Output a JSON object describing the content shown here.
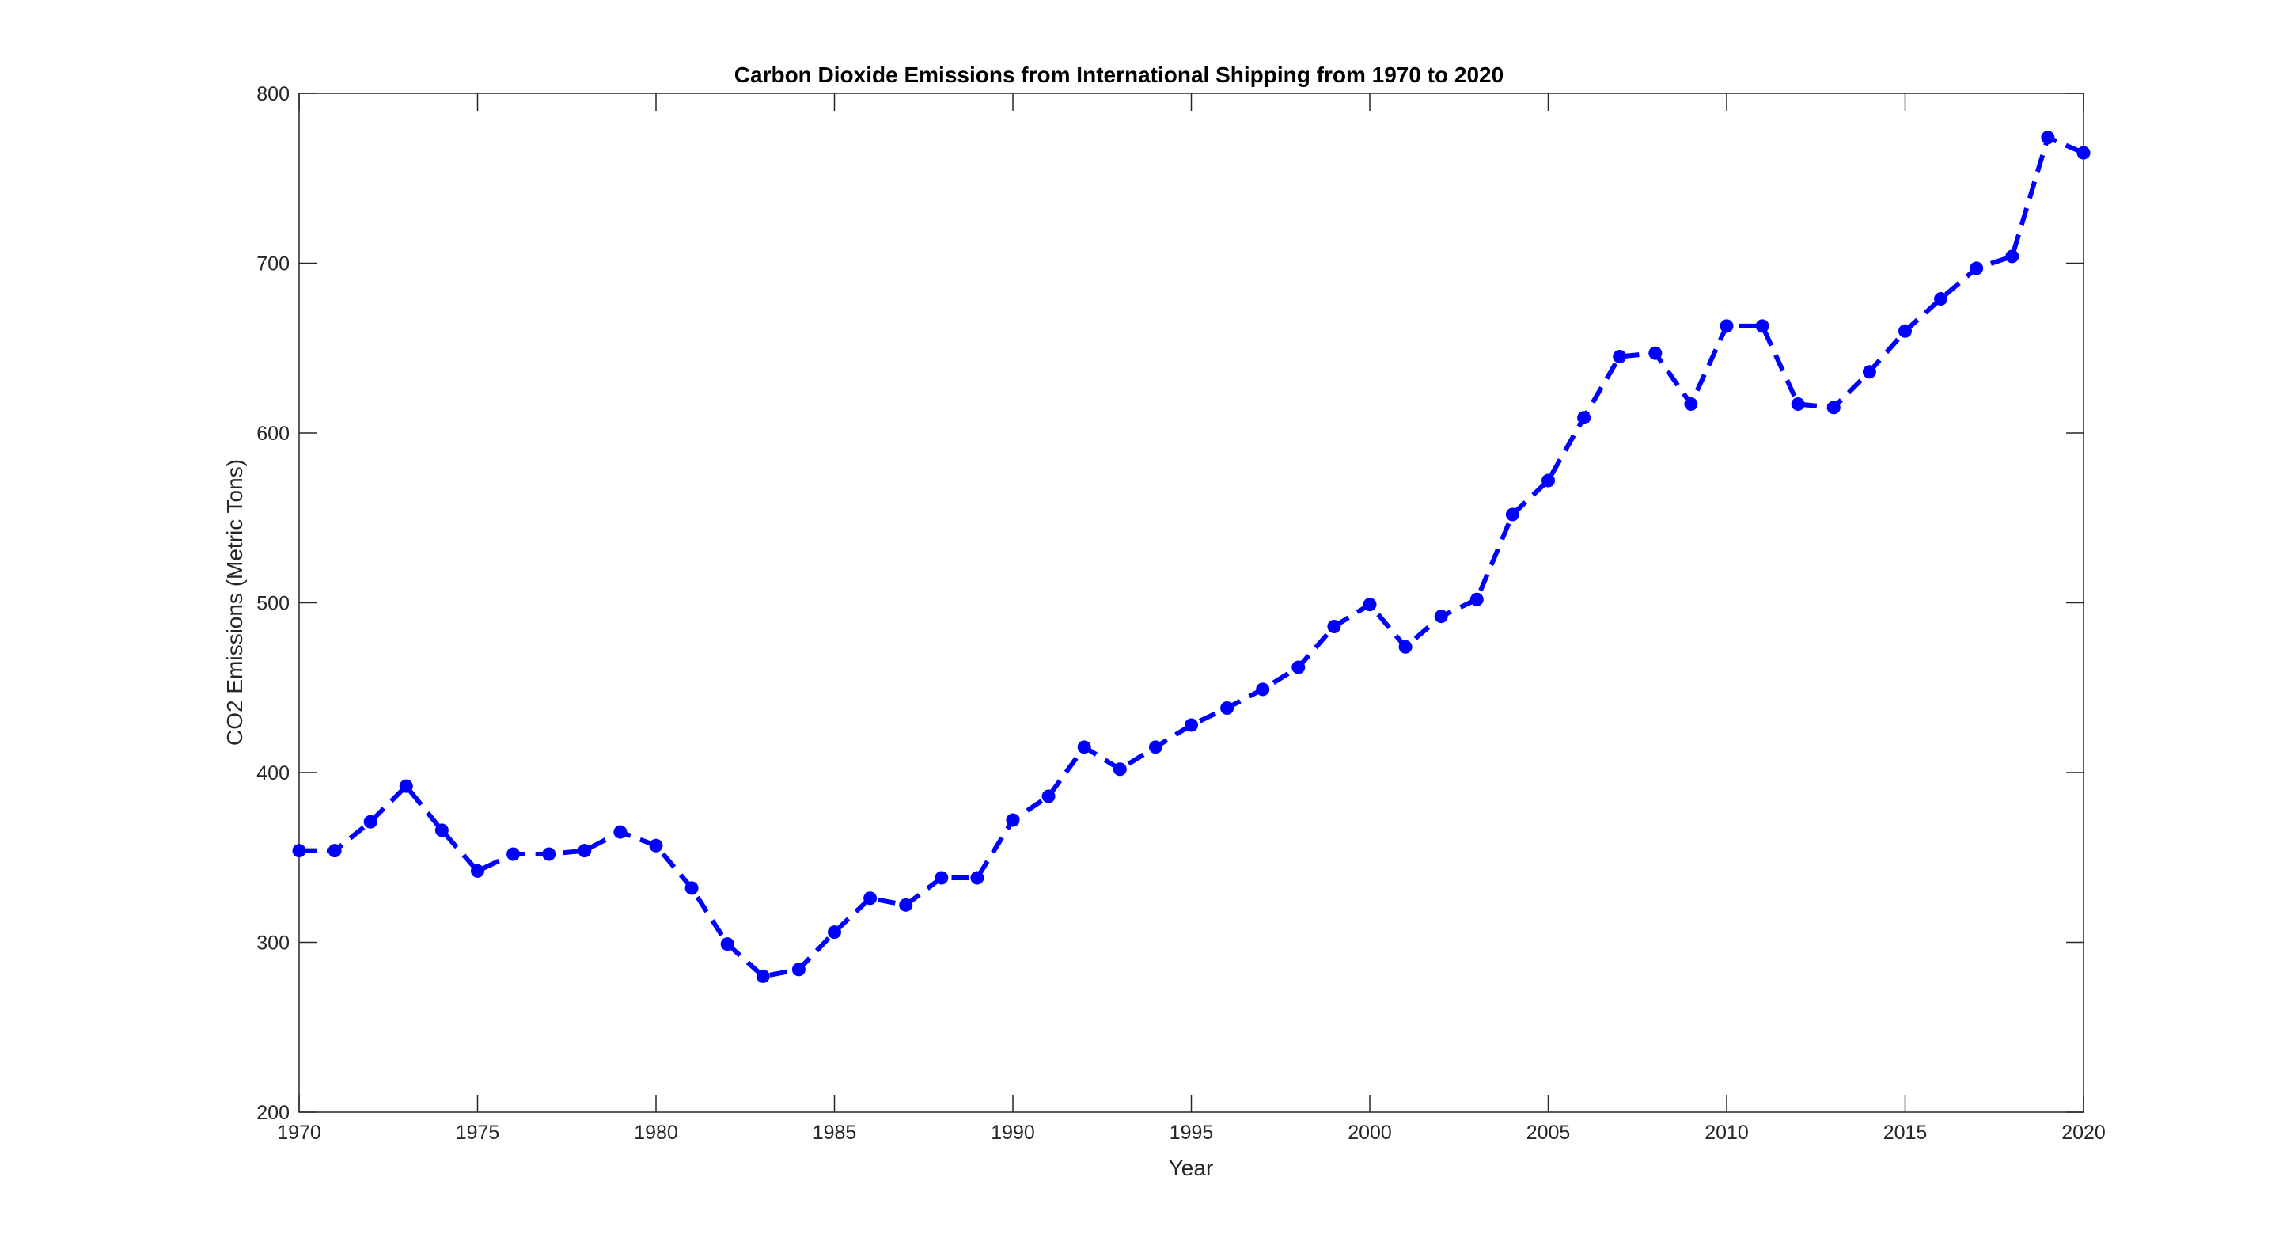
{
  "chart_data": {
    "type": "line",
    "title": "Carbon Dioxide Emissions from International Shipping from 1970 to 2020",
    "xlabel": "Year",
    "ylabel": "CO2 Emissions (Metric Tons)",
    "xlim": [
      1970,
      2020
    ],
    "ylim": [
      200,
      800
    ],
    "xticks": [
      "1970",
      "1975",
      "1980",
      "1985",
      "1990",
      "1995",
      "2000",
      "2005",
      "2010",
      "2015",
      "2020"
    ],
    "yticks": [
      "200",
      "300",
      "400",
      "500",
      "600",
      "700",
      "800"
    ],
    "grid": false,
    "box": true,
    "line_color": "#0000ff",
    "line_style": "dashed",
    "marker": "circle",
    "axis_color": "#262626",
    "x": [
      1970,
      1971,
      1972,
      1973,
      1974,
      1975,
      1976,
      1977,
      1978,
      1979,
      1980,
      1981,
      1982,
      1983,
      1984,
      1985,
      1986,
      1987,
      1988,
      1989,
      1990,
      1991,
      1992,
      1993,
      1994,
      1995,
      1996,
      1997,
      1998,
      1999,
      2000,
      2001,
      2002,
      2003,
      2004,
      2005,
      2006,
      2007,
      2008,
      2009,
      2010,
      2011,
      2012,
      2013,
      2014,
      2015,
      2016,
      2017,
      2018,
      2019,
      2020
    ],
    "y": [
      354,
      354,
      371,
      392,
      366,
      342,
      352,
      352,
      354,
      365,
      357,
      332,
      299,
      280,
      284,
      306,
      326,
      322,
      338,
      338,
      372,
      386,
      415,
      402,
      415,
      428,
      438,
      449,
      462,
      486,
      499,
      474,
      492,
      502,
      552,
      572,
      609,
      645,
      647,
      617,
      663,
      663,
      617,
      615,
      636,
      660,
      679,
      697,
      704,
      774,
      765
    ]
  }
}
